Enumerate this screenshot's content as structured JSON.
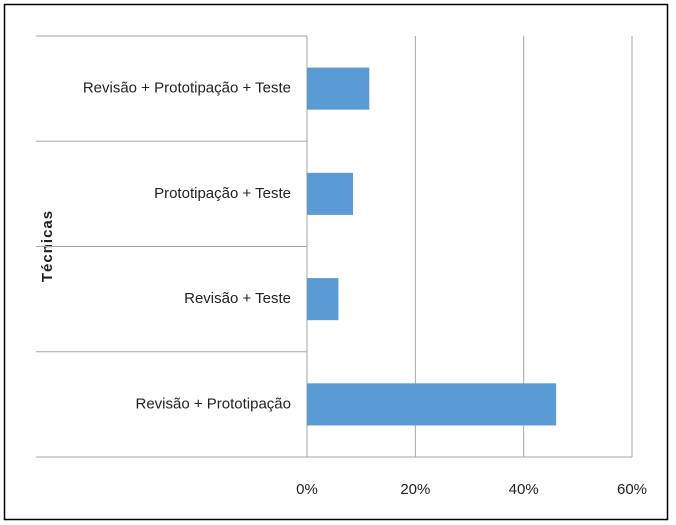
{
  "chart_data": {
    "type": "hbar",
    "y_label": "Técnicas",
    "categories": [
      "Revisão + Prototipação + Teste",
      "Prototipação + Teste",
      "Revisão + Teste",
      "Revisão + Prototipação"
    ],
    "values": [
      11.5,
      8.5,
      5.8,
      46
    ],
    "color": "#5b9bd5",
    "xlim": [
      0,
      60
    ],
    "xticks": [
      {
        "value": 0,
        "label": "0%"
      },
      {
        "value": 20,
        "label": "20%"
      },
      {
        "value": 40,
        "label": "40%"
      },
      {
        "value": 60,
        "label": "60%"
      }
    ],
    "grid": true
  }
}
